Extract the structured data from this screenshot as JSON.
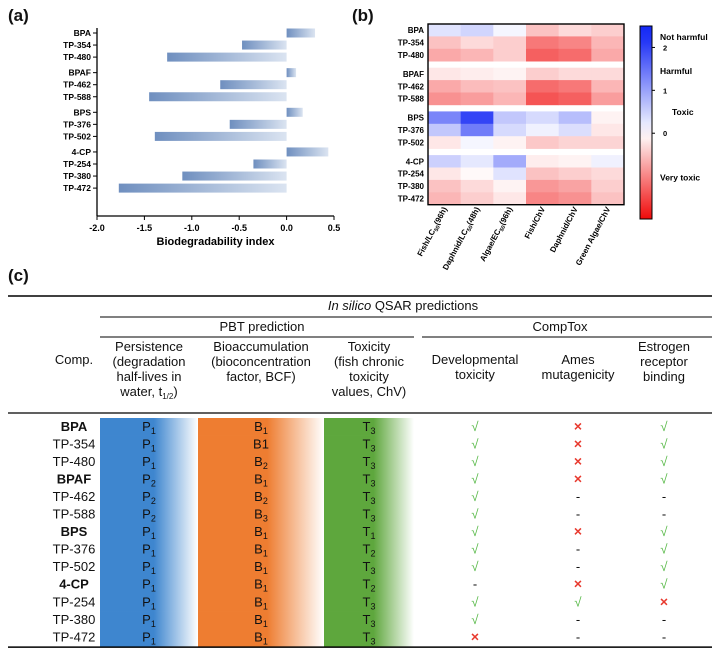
{
  "panels": {
    "a": "(a)",
    "b": "(b)",
    "c": "(c)"
  },
  "colors": {
    "bar": "#6f8fbf",
    "blue_col": "#3e86cf",
    "orange_col": "#ee7d31",
    "green_col": "#5ea73d",
    "check": "#58b948",
    "cross": "#e8392e"
  },
  "chart_data": [
    {
      "type": "bar",
      "orientation": "horizontal",
      "categories": [
        "BPA",
        "TP-354",
        "TP-480",
        "BPAF",
        "TP-462",
        "TP-588",
        "BPS",
        "TP-376",
        "TP-502",
        "4-CP",
        "TP-254",
        "TP-380",
        "TP-472"
      ],
      "group_break_after": [
        "TP-480",
        "TP-588",
        "TP-502"
      ],
      "values": [
        0.3,
        -0.47,
        -1.26,
        0.1,
        -0.7,
        -1.45,
        0.17,
        -0.6,
        -1.39,
        0.44,
        -0.35,
        -1.1,
        -1.77
      ],
      "xlim": [
        -2.0,
        0.5
      ],
      "xticks": [
        "-2.0",
        "-1.5",
        "-1.0",
        "-0.5",
        "0.0",
        "0.5"
      ],
      "xtick_values": [
        -2.0,
        -1.5,
        -1.0,
        -0.5,
        0.0,
        0.5
      ],
      "xlabel": "Biodegradability index",
      "grid": false
    },
    {
      "type": "heatmap",
      "rows": [
        "BPA",
        "TP-354",
        "TP-480",
        "BPAF",
        "TP-462",
        "TP-588",
        "BPS",
        "TP-376",
        "TP-502",
        "4-CP",
        "TP-254",
        "TP-380",
        "TP-472"
      ],
      "columns": [
        "Fish/LC50(96h)",
        "Daphnid/LC50(48h)",
        "Algae/EC50(96h)",
        "Fish/ChV",
        "Daphnid/ChV",
        "Green Algae/ChV"
      ],
      "column_display": [
        {
          "main": "Fish/LC",
          "sub": "50",
          "tail": "(96h)"
        },
        {
          "main": "Daphnid/LC",
          "sub": "50",
          "tail": "(48h)"
        },
        {
          "main": "Algae/EC",
          "sub": "50",
          "tail": "(96h)"
        },
        {
          "main": "Fish/ChV",
          "sub": "",
          "tail": ""
        },
        {
          "main": "Daphnid/ChV",
          "sub": "",
          "tail": ""
        },
        {
          "main": "Green Algae/ChV",
          "sub": "",
          "tail": ""
        }
      ],
      "values": [
        [
          0.3,
          0.45,
          0.1,
          -0.5,
          -0.3,
          -0.4
        ],
        [
          -0.5,
          -0.3,
          -0.4,
          -1.1,
          -1.0,
          -0.6
        ],
        [
          -0.7,
          -0.6,
          -0.4,
          -1.3,
          -1.2,
          -0.7
        ],
        [
          -0.2,
          -0.15,
          -0.1,
          -0.4,
          -0.3,
          -0.3
        ],
        [
          -0.7,
          -0.55,
          -0.5,
          -1.2,
          -1.1,
          -0.6
        ],
        [
          -0.9,
          -0.8,
          -0.6,
          -1.4,
          -1.3,
          -0.8
        ],
        [
          1.3,
          2.0,
          0.6,
          0.4,
          0.7,
          -0.1
        ],
        [
          0.6,
          1.4,
          0.4,
          0.15,
          0.35,
          -0.2
        ],
        [
          -0.2,
          0.1,
          -0.1,
          -0.45,
          -0.35,
          -0.35
        ],
        [
          0.5,
          0.25,
          0.9,
          -0.15,
          -0.1,
          0.15
        ],
        [
          -0.2,
          -0.05,
          0.3,
          -0.5,
          -0.4,
          -0.3
        ],
        [
          -0.5,
          -0.3,
          -0.1,
          -0.85,
          -0.75,
          -0.4
        ],
        [
          -0.6,
          -0.4,
          -0.2,
          -1.0,
          -0.9,
          -0.5
        ]
      ],
      "group_break_after": [
        "TP-480",
        "TP-588",
        "TP-502"
      ],
      "colorbar": {
        "ticks": [
          "2",
          "1",
          "0"
        ],
        "tick_values": [
          2,
          1,
          0
        ],
        "range": [
          -2,
          2.5
        ],
        "labels": [
          "Not harmful",
          "Harmful",
          "Toxic",
          "Very toxic"
        ]
      },
      "colormap": "blue-white-red"
    }
  ],
  "table": {
    "title_italic": "In silico",
    "title_rest": " QSAR predictions",
    "group_pbt": "PBT prediction",
    "group_comptox": "CompTox",
    "comp_header": "Comp.",
    "headers": [
      [
        "Persistence",
        "(degradation",
        "half-lives in",
        "water, t"
      ],
      [
        "Bioaccumulation",
        "(bioconcentration",
        "factor, BCF)"
      ],
      [
        "Toxicity",
        "(fish chronic",
        "toxicity",
        "values, ChV)"
      ],
      [
        "Developmental",
        "toxicity"
      ],
      [
        "Ames",
        "mutagenicity"
      ],
      [
        "Estrogen",
        "receptor",
        "binding"
      ]
    ],
    "half_life_sub": "1/2",
    "half_life_close": ")",
    "rows": [
      {
        "comp": "BPA",
        "bold": true,
        "P": "P",
        "Ps": "1",
        "B": "B",
        "Bs": "1",
        "T": "T",
        "Ts": "3",
        "dev": "√",
        "ames": "×",
        "estro": "√"
      },
      {
        "comp": "TP-354",
        "bold": false,
        "P": "P",
        "Ps": "1",
        "B": "B1",
        "Bs": "",
        "T": "T",
        "Ts": "3",
        "dev": "√",
        "ames": "×",
        "estro": "√"
      },
      {
        "comp": "TP-480",
        "bold": false,
        "P": "P",
        "Ps": "1",
        "B": "B",
        "Bs": "2",
        "T": "T",
        "Ts": "3",
        "dev": "√",
        "ames": "×",
        "estro": "√"
      },
      {
        "comp": "BPAF",
        "bold": true,
        "P": "P",
        "Ps": "2",
        "B": "B",
        "Bs": "1",
        "T": "T",
        "Ts": "3",
        "dev": "√",
        "ames": "×",
        "estro": "√"
      },
      {
        "comp": "TP-462",
        "bold": false,
        "P": "P",
        "Ps": "2",
        "B": "B",
        "Bs": "2",
        "T": "T",
        "Ts": "3",
        "dev": "√",
        "ames": "-",
        "estro": "-"
      },
      {
        "comp": "TP-588",
        "bold": false,
        "P": "P",
        "Ps": "2",
        "B": "B",
        "Bs": "3",
        "T": "T",
        "Ts": "3",
        "dev": "√",
        "ames": "-",
        "estro": "-"
      },
      {
        "comp": "BPS",
        "bold": true,
        "P": "P",
        "Ps": "1",
        "B": "B",
        "Bs": "1",
        "T": "T",
        "Ts": "1",
        "dev": "√",
        "ames": "×",
        "estro": "√"
      },
      {
        "comp": "TP-376",
        "bold": false,
        "P": "P",
        "Ps": "1",
        "B": "B",
        "Bs": "1",
        "T": "T",
        "Ts": "2",
        "dev": "√",
        "ames": "-",
        "estro": "√"
      },
      {
        "comp": "TP-502",
        "bold": false,
        "P": "P",
        "Ps": "1",
        "B": "B",
        "Bs": "1",
        "T": "T",
        "Ts": "3",
        "dev": "√",
        "ames": "-",
        "estro": "√"
      },
      {
        "comp": "4-CP",
        "bold": true,
        "P": "P",
        "Ps": "1",
        "B": "B",
        "Bs": "1",
        "T": "T",
        "Ts": "2",
        "dev": "-",
        "ames": "×",
        "estro": "√"
      },
      {
        "comp": "TP-254",
        "bold": false,
        "P": "P",
        "Ps": "1",
        "B": "B",
        "Bs": "1",
        "T": "T",
        "Ts": "3",
        "dev": "√",
        "ames": "√",
        "estro": "×"
      },
      {
        "comp": "TP-380",
        "bold": false,
        "P": "P",
        "Ps": "1",
        "B": "B",
        "Bs": "1",
        "T": "T",
        "Ts": "3",
        "dev": "√",
        "ames": "-",
        "estro": "-"
      },
      {
        "comp": "TP-472",
        "bold": false,
        "P": "P",
        "Ps": "1",
        "B": "B",
        "Bs": "1",
        "T": "T",
        "Ts": "3",
        "dev": "×",
        "ames": "-",
        "estro": "-"
      }
    ]
  }
}
